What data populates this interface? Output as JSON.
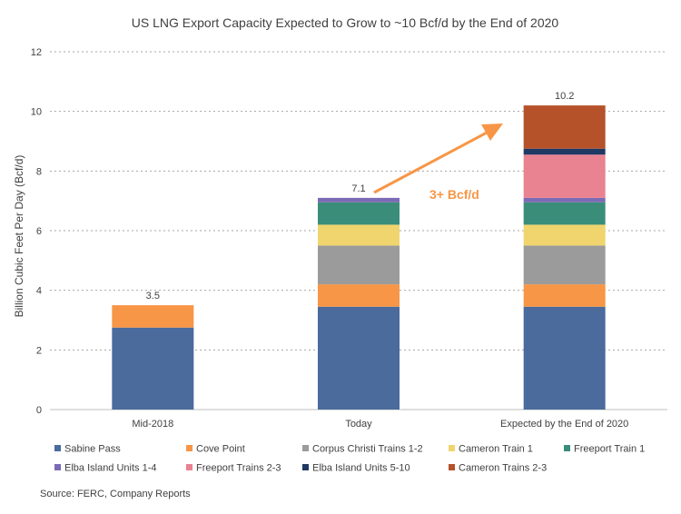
{
  "chart_data": {
    "type": "bar",
    "stacked": true,
    "title": "US LNG Export Capacity Expected to Grow to ~10 Bcf/d by the End of 2020",
    "ylabel": "Billion Cubic Feet Per Day (Bcf/d)",
    "xlabel": "",
    "ylim": [
      0,
      12
    ],
    "yticks": [
      "0",
      "2",
      "4",
      "6",
      "8",
      "10",
      "12"
    ],
    "grid": true,
    "legend_position": "bottom",
    "categories": [
      "Mid-2018",
      "Today",
      "Expected by the End of 2020"
    ],
    "totals": [
      "3.5",
      "7.1",
      "10.2"
    ],
    "series": [
      {
        "name": "Sabine Pass",
        "color": "#4A6B9C",
        "values": [
          2.75,
          3.45,
          3.45
        ]
      },
      {
        "name": "Cove Point",
        "color": "#F79646",
        "values": [
          0.75,
          0.75,
          0.75
        ]
      },
      {
        "name": "Corpus Christi Trains 1-2",
        "color": "#9B9B9B",
        "values": [
          0,
          1.3,
          1.3
        ]
      },
      {
        "name": "Cameron Train 1",
        "color": "#F0D56E",
        "values": [
          0,
          0.7,
          0.7
        ]
      },
      {
        "name": "Freeport Train 1",
        "color": "#3A8E79",
        "values": [
          0,
          0.75,
          0.75
        ]
      },
      {
        "name": "Elba Island Units 1-4",
        "color": "#7B6BB5",
        "values": [
          0,
          0.15,
          0.15
        ]
      },
      {
        "name": "Freeport Trains 2-3",
        "color": "#E98291",
        "values": [
          0,
          0,
          1.45
        ]
      },
      {
        "name": "Elba Island Units 5-10",
        "color": "#1F3864",
        "values": [
          0,
          0,
          0.2
        ]
      },
      {
        "name": "Cameron Trains 2-3",
        "color": "#B5522A",
        "values": [
          0,
          0,
          1.45
        ]
      }
    ],
    "annotation": {
      "text": "3+ Bcf/d",
      "color": "#F79646"
    }
  },
  "source": "Source: FERC, Company Reports"
}
